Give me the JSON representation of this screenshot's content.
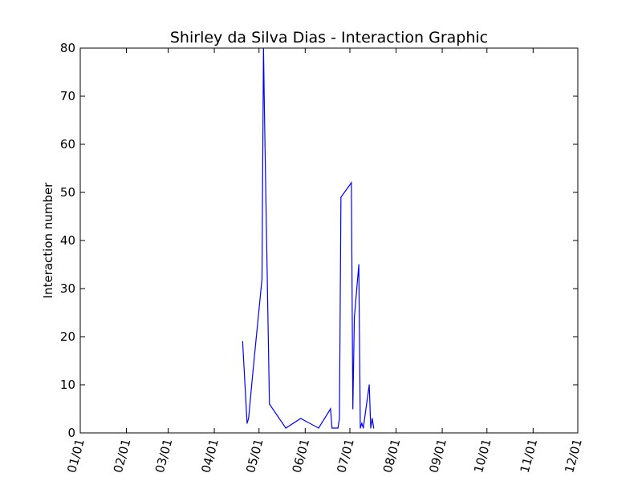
{
  "chart_data": {
    "type": "line",
    "title": "Shirley da Silva Dias - Interaction Graphic",
    "xlabel": "",
    "ylabel": "Interaction number",
    "ylim": [
      0,
      80
    ],
    "yticks": [
      "0",
      "10",
      "20",
      "30",
      "40",
      "50",
      "60",
      "70",
      "80"
    ],
    "xlim": [
      "2017-01-01",
      "2017-12-01"
    ],
    "xticks": [
      {
        "date": "2017-01-01",
        "label": "01/01"
      },
      {
        "date": "2017-02-01",
        "label": "02/01"
      },
      {
        "date": "2017-03-01",
        "label": "03/01"
      },
      {
        "date": "2017-04-01",
        "label": "04/01"
      },
      {
        "date": "2017-05-01",
        "label": "05/01"
      },
      {
        "date": "2017-06-01",
        "label": "06/01"
      },
      {
        "date": "2017-07-01",
        "label": "07/01"
      },
      {
        "date": "2017-08-01",
        "label": "08/01"
      },
      {
        "date": "2017-09-01",
        "label": "09/01"
      },
      {
        "date": "2017-10-01",
        "label": "10/01"
      },
      {
        "date": "2017-11-01",
        "label": "11/01"
      },
      {
        "date": "2017-12-01",
        "label": "12/01"
      }
    ],
    "grid": false,
    "series": [
      {
        "color": "#0000ff",
        "points": [
          {
            "x": "2017-04-20",
            "y": 19
          },
          {
            "x": "2017-04-23",
            "y": 2
          },
          {
            "x": "2017-04-24",
            "y": 3
          },
          {
            "x": "2017-04-27",
            "y": 13
          },
          {
            "x": "2017-05-03",
            "y": 32
          },
          {
            "x": "2017-05-04",
            "y": 80
          },
          {
            "x": "2017-05-05",
            "y": 60
          },
          {
            "x": "2017-05-08",
            "y": 6
          },
          {
            "x": "2017-05-19",
            "y": 1
          },
          {
            "x": "2017-05-29",
            "y": 3
          },
          {
            "x": "2017-06-10",
            "y": 1
          },
          {
            "x": "2017-06-18",
            "y": 5
          },
          {
            "x": "2017-06-19",
            "y": 1
          },
          {
            "x": "2017-06-23",
            "y": 1
          },
          {
            "x": "2017-06-24",
            "y": 3
          },
          {
            "x": "2017-06-25",
            "y": 49
          },
          {
            "x": "2017-07-02",
            "y": 52
          },
          {
            "x": "2017-07-03",
            "y": 5
          },
          {
            "x": "2017-07-04",
            "y": 24
          },
          {
            "x": "2017-07-07",
            "y": 35
          },
          {
            "x": "2017-07-08",
            "y": 1
          },
          {
            "x": "2017-07-09",
            "y": 2
          },
          {
            "x": "2017-07-10",
            "y": 1
          },
          {
            "x": "2017-07-14",
            "y": 10
          },
          {
            "x": "2017-07-15",
            "y": 1
          },
          {
            "x": "2017-07-16",
            "y": 3
          },
          {
            "x": "2017-07-17",
            "y": 1
          }
        ]
      }
    ]
  }
}
